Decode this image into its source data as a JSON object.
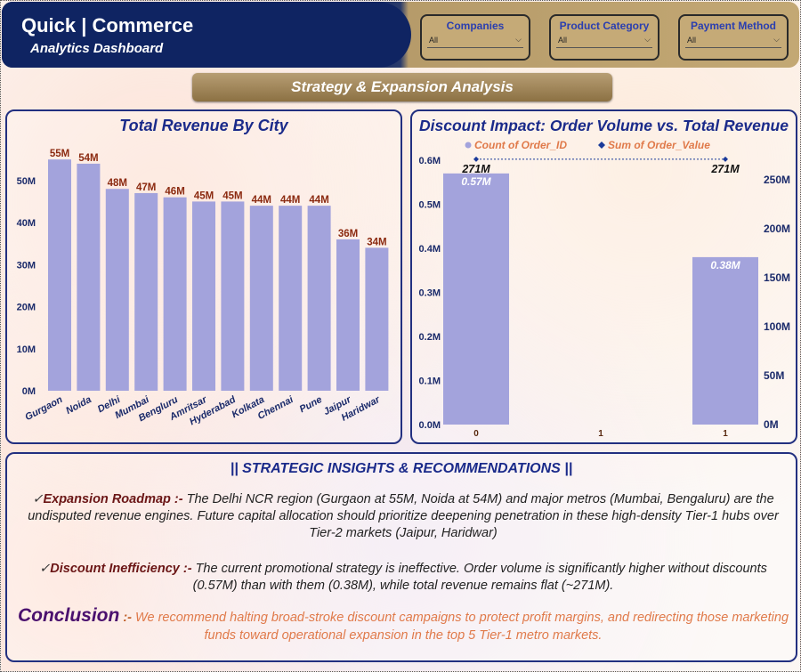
{
  "header": {
    "title": "Quick | Commerce",
    "subtitle": "Analytics  Dashboard",
    "filters": [
      {
        "label": "Companies",
        "value": "All"
      },
      {
        "label": "Product Category",
        "value": "All"
      },
      {
        "label": "Payment Method",
        "value": "All"
      }
    ]
  },
  "section_title": "Strategy & Expansion Analysis",
  "chart_data": [
    {
      "type": "bar",
      "title": "Total Revenue By City",
      "categories": [
        "Gurgaon",
        "Noida",
        "Delhi",
        "Mumbai",
        "Bengluru",
        "Amritsar",
        "Hyderabad",
        "Kolkata",
        "Chennai",
        "Pune",
        "Jaipur",
        "Haridwar"
      ],
      "values": [
        55,
        54,
        48,
        47,
        46,
        45,
        45,
        44,
        44,
        44,
        36,
        34
      ],
      "data_labels": [
        "55M",
        "54M",
        "48M",
        "47M",
        "46M",
        "45M",
        "45M",
        "44M",
        "44M",
        "44M",
        "36M",
        "34M"
      ],
      "yticks": [
        "0M",
        "10M",
        "20M",
        "30M",
        "40M",
        "50M"
      ],
      "ylim": [
        0,
        58
      ],
      "bar_color": "#a3a3dc",
      "label_color": "#8b2a10"
    },
    {
      "type": "bar+line",
      "title": "Discount Impact: Order Volume vs. Total Revenue",
      "legend": [
        {
          "name": "Count of Order_ID",
          "marker": "circle",
          "color": "#a3a3dc"
        },
        {
          "name": "Sum of Order_Value",
          "marker": "diamond",
          "color": "#1a3a9a"
        }
      ],
      "legend_text_color": "#e07a4a",
      "categories": [
        "0",
        "1",
        "1"
      ],
      "bars": [
        0.57,
        null,
        0.38
      ],
      "bar_labels": [
        "0.57M",
        "",
        "0.38M"
      ],
      "line_values": [
        271,
        null,
        271
      ],
      "line_labels": [
        "271M",
        "",
        "271M"
      ],
      "left_ticks": [
        "0.0M",
        "0.1M",
        "0.2M",
        "0.3M",
        "0.4M",
        "0.5M",
        "0.6M"
      ],
      "left_ylim": [
        0,
        0.6
      ],
      "right_ticks": [
        "0M",
        "50M",
        "100M",
        "150M",
        "200M",
        "250M"
      ],
      "right_ylim": [
        0,
        270
      ]
    }
  ],
  "insights": {
    "heading": "|| STRATEGIC INSIGHTS & RECOMMENDATIONS ||",
    "items": [
      {
        "check": "✓",
        "key": "Expansion Roadmap",
        "sep": " :- ",
        "text": "The Delhi NCR region (Gurgaon at 55M, Noida at 54M) and major metros (Mumbai, Bengaluru) are the undisputed revenue engines. Future capital allocation should prioritize deepening penetration in these high-density Tier-1 hubs over Tier-2 markets (Jaipur, Haridwar)"
      },
      {
        "check": "✓",
        "key": "Discount Inefficiency",
        "sep": " :- ",
        "text": "The current promotional strategy is ineffective. Order volume is significantly higher without discounts (0.57M) than with them (0.38M), while total revenue remains flat (~271M)."
      }
    ],
    "conclusion": {
      "key": "Conclusion",
      "sep": " :- ",
      "text": "We recommend halting broad-stroke discount campaigns to protect profit margins, and redirecting those marketing funds toward operational expansion in the top 5 Tier-1 metro markets."
    }
  }
}
